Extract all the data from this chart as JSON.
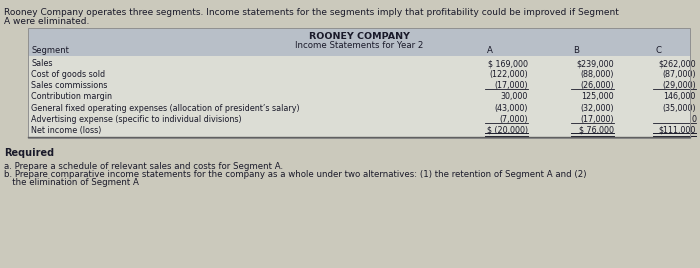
{
  "title1": "ROONEY COMPANY",
  "title2": "Income Statements for Year 2",
  "header_label": "Segment",
  "col_headers": [
    "A",
    "B",
    "C"
  ],
  "row_labels": [
    "Sales",
    "Cost of goods sold",
    "Sales commissions",
    "Contribution margin",
    "General fixed operating expenses (allocation of president’s salary)",
    "Advertising expense (specific to individual divisions)",
    "Net income (loss)"
  ],
  "col_A": [
    "$ 169,000",
    "(122,000)",
    "(17,000)",
    "30,000",
    "(43,000)",
    "(7,000)",
    "$ (20,000)"
  ],
  "col_B": [
    "$239,000",
    "(88,000)",
    "(26,000)",
    "125,000",
    "(32,000)",
    "(17,000)",
    "$ 76,000"
  ],
  "col_C": [
    "$262,000",
    "(87,000)",
    "(29,000)",
    "146,000",
    "(35,000)",
    "0",
    "$111,000"
  ],
  "bg_color_page": "#cbc9bc",
  "bg_color_header": "#b8bfc8",
  "bg_color_body": "#dcddd5",
  "text_color": "#1a1a2a",
  "intro_text_line1": "Rooney Company operates three segments. Income statements for the segments imply that profitability could be improved if Segment",
  "intro_text_line2": "A were eliminated.",
  "required_text": "Required",
  "req_a": "a. Prepare a schedule of relevant sales and costs for Segment A.",
  "req_b_line1": "b. Prepare comparative income statements for the company as a whole under two alternatives: (1) the retention of Segment A and (2)",
  "req_b_line2": "   the elimination of Segment A"
}
